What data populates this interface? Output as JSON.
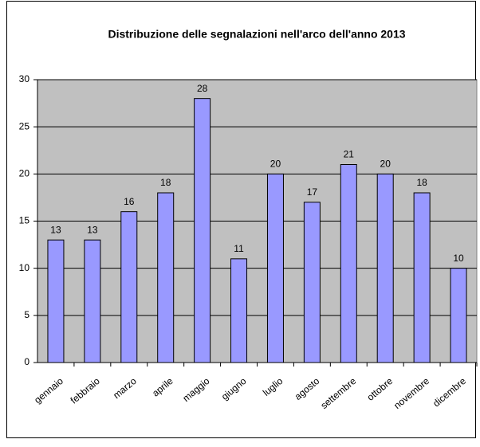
{
  "chart_data": {
    "type": "bar",
    "title": "Distribuzione delle segnalazioni nell'arco dell'anno 2013",
    "categories": [
      "gennaio",
      "febbraio",
      "marzo",
      "aprile",
      "maggio",
      "giugno",
      "luglio",
      "agosto",
      "settembre",
      "ottobre",
      "novembre",
      "dicembre"
    ],
    "values": [
      13,
      13,
      16,
      18,
      28,
      11,
      20,
      17,
      21,
      20,
      18,
      10
    ],
    "color": "#9999ff",
    "ylim": [
      0,
      30
    ],
    "yticks": [
      0,
      5,
      10,
      15,
      20,
      25,
      30
    ],
    "grid": true
  }
}
